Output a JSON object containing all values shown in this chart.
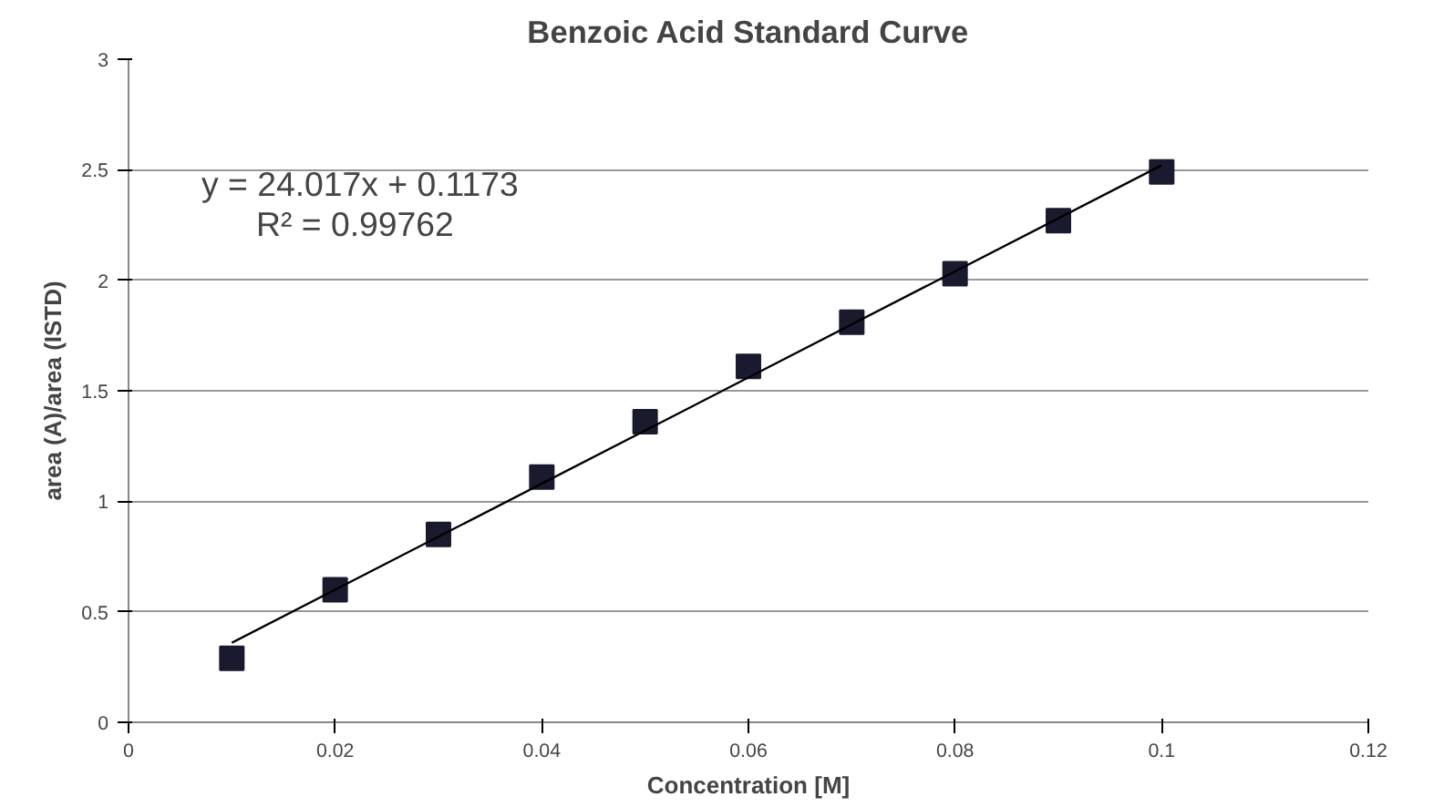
{
  "chart_data": {
    "type": "scatter",
    "title": "Benzoic Acid Standard Curve",
    "xlabel": "Concentration [M]",
    "ylabel": "area (A)/area (ISTD)",
    "x": [
      0.01,
      0.02,
      0.03,
      0.04,
      0.05,
      0.06,
      0.07,
      0.08,
      0.09,
      0.1
    ],
    "series": [
      {
        "color": "#1a1a2e",
        "values": [
          0.29,
          0.6,
          0.85,
          1.11,
          1.36,
          1.61,
          1.81,
          2.03,
          2.27,
          2.49
        ]
      },
      {
        "type": "line",
        "color": "#000000",
        "marker": "none",
        "x": [
          0.01,
          0.1
        ],
        "values": [
          0.36,
          2.52
        ]
      }
    ],
    "annotations": [
      "y = 24.017x + 0.1173",
      "R² = 0.99762"
    ],
    "xlim": [
      0,
      0.12
    ],
    "ylim": [
      0,
      3
    ],
    "xticks": [
      0,
      0.02,
      0.04,
      0.06,
      0.08,
      0.1,
      0.12
    ],
    "yticks": [
      0,
      0.5,
      1,
      1.5,
      2,
      2.5,
      3
    ],
    "grid": "y",
    "marker": "square",
    "line_style": "solid"
  }
}
